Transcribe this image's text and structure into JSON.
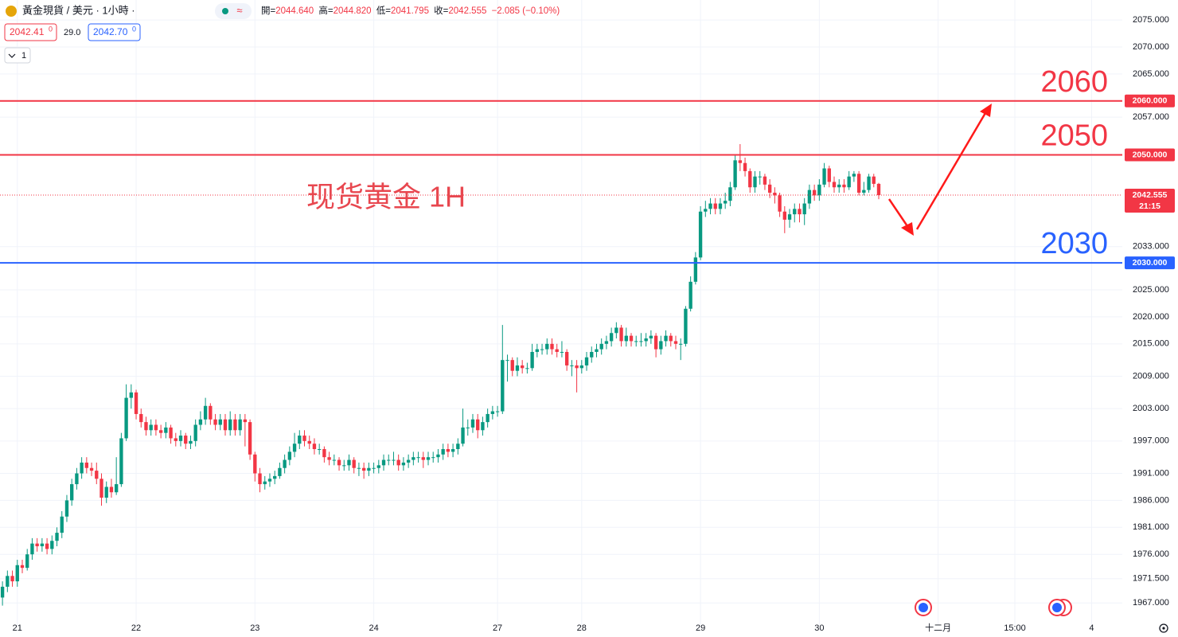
{
  "header": {
    "symbol": "黃金現貨 / 美元 · 1小時 ·",
    "badge": "≈",
    "ohlc": [
      {
        "key": "開=",
        "value": "2044.640"
      },
      {
        "key": "高=",
        "value": "2044.820"
      },
      {
        "key": "低=",
        "value": "2041.795"
      },
      {
        "key": "收=",
        "value": "2042.555"
      }
    ],
    "change": "−2.085 (−0.10%)",
    "bid": "2042.41",
    "bid_sup": "0",
    "spread": "29.0",
    "ask": "2042.70",
    "ask_sup": "0",
    "indicator_count": "1"
  },
  "chart_data": {
    "type": "candlestick",
    "annotation": "现货黄金 1H",
    "up_color": "#089981",
    "down_color": "#f23645",
    "grid": true,
    "xlim": [
      -0.5,
      226.2
    ],
    "ylim": [
      1962.9,
      2078.7
    ],
    "xticks": [
      {
        "value": 3,
        "label": "21"
      },
      {
        "value": 27,
        "label": "22"
      },
      {
        "value": 51,
        "label": "23"
      },
      {
        "value": 75,
        "label": "24"
      },
      {
        "value": 100,
        "label": "27"
      },
      {
        "value": 117,
        "label": "28"
      },
      {
        "value": 141,
        "label": "29"
      },
      {
        "value": 165,
        "label": "30"
      },
      {
        "value": 189,
        "label": "十二月"
      },
      {
        "value": 204.5,
        "label": "15:00"
      },
      {
        "value": 220,
        "label": "4"
      }
    ],
    "yticks": [
      {
        "value": 2075,
        "label": "2075.000"
      },
      {
        "value": 2070,
        "label": "2070.000"
      },
      {
        "value": 2065,
        "label": "2065.000"
      },
      {
        "value": 2057,
        "label": "2057.000"
      },
      {
        "value": 2033,
        "label": "2033.000"
      },
      {
        "value": 2025,
        "label": "2025.000"
      },
      {
        "value": 2020,
        "label": "2020.000"
      },
      {
        "value": 2015,
        "label": "2015.000"
      },
      {
        "value": 2009,
        "label": "2009.000"
      },
      {
        "value": 2003,
        "label": "2003.000"
      },
      {
        "value": 1997,
        "label": "1997.000"
      },
      {
        "value": 1991,
        "label": "1991.000"
      },
      {
        "value": 1986,
        "label": "1986.000"
      },
      {
        "value": 1981,
        "label": "1981.000"
      },
      {
        "value": 1976,
        "label": "1976.000"
      },
      {
        "value": 1971.5,
        "label": "1971.500"
      },
      {
        "value": 1967,
        "label": "1967.000"
      }
    ],
    "levels": [
      {
        "value": 2060,
        "label": "2060.000",
        "color": "#f23645"
      },
      {
        "value": 2050,
        "label": "2050.000",
        "color": "#f23645"
      },
      {
        "value": 2030,
        "label": "2030.000",
        "color": "#2962ff"
      }
    ],
    "last_price": {
      "value": 2042.555,
      "countdown": "21:15",
      "color": "#f23645"
    },
    "x": [
      0,
      1,
      2,
      3,
      4,
      5,
      6,
      7,
      8,
      9,
      10,
      11,
      12,
      13,
      14,
      15,
      16,
      17,
      18,
      19,
      20,
      21,
      22,
      23,
      24,
      25,
      26,
      27,
      28,
      29,
      30,
      31,
      32,
      33,
      34,
      35,
      36,
      37,
      38,
      39,
      40,
      41,
      42,
      43,
      44,
      45,
      46,
      47,
      48,
      49,
      50,
      51,
      52,
      53,
      54,
      55,
      56,
      57,
      58,
      59,
      60,
      61,
      62,
      63,
      64,
      65,
      66,
      67,
      68,
      69,
      70,
      71,
      72,
      73,
      74,
      75,
      76,
      77,
      78,
      79,
      80,
      81,
      82,
      83,
      84,
      85,
      86,
      87,
      88,
      89,
      90,
      91,
      92,
      93,
      94,
      95,
      96,
      97,
      98,
      99,
      100,
      101,
      102,
      103,
      104,
      105,
      106,
      107,
      108,
      109,
      110,
      111,
      112,
      113,
      114,
      115,
      116,
      117,
      118,
      119,
      120,
      121,
      122,
      123,
      124,
      125,
      126,
      127,
      128,
      129,
      130,
      131,
      132,
      133,
      134,
      135,
      136,
      137,
      138,
      139,
      140,
      141,
      142,
      143,
      144,
      145,
      146,
      147,
      148,
      149,
      150,
      151,
      152,
      153,
      154,
      155,
      156,
      157,
      158,
      159,
      160,
      161,
      162,
      163,
      164,
      165,
      166,
      167,
      168,
      169,
      170,
      171,
      172,
      173,
      174,
      175,
      176,
      177
    ],
    "open": [
      1968,
      1970,
      1972,
      1971,
      1974,
      1973.5,
      1976,
      1978,
      1977.5,
      1978,
      1977,
      1978.5,
      1980,
      1983,
      1986,
      1989,
      1991,
      1993,
      1992,
      1991.5,
      1990,
      1986.5,
      1988.5,
      1987.5,
      1989,
      1997.5,
      2005,
      2006,
      2002,
      2000.5,
      1999,
      2000,
      1999,
      1998.5,
      1999.5,
      1997.5,
      1997,
      1998,
      1996.5,
      1997,
      2000,
      2001,
      2003.5,
      2001,
      2000,
      2001,
      1999,
      2001,
      1999,
      2001,
      2000.5,
      1994.5,
      1991,
      1989,
      1989.5,
      1990,
      1990.5,
      1992,
      1993.5,
      1995,
      1996.5,
      1998,
      1997,
      1996.5,
      1995.5,
      1995.5,
      1994,
      1993.5,
      1993.5,
      1992.5,
      1992.5,
      1993.5,
      1992,
      1992,
      1991.5,
      1992,
      1992,
      1992.5,
      1993.5,
      1993.5,
      1993.5,
      1992.5,
      1993,
      1993.5,
      1994,
      1994,
      1993.5,
      1994,
      1994,
      1994.5,
      1995.5,
      1995,
      1995.5,
      1996.5,
      1999.5,
      1999.5,
      2001,
      1999,
      2000.5,
      2002,
      2002.5,
      2002.5,
      2012,
      2012,
      2010,
      2011,
      2010.5,
      2010.5,
      2013.5,
      2014,
      2014,
      2015,
      2014,
      2013.5,
      2013.5,
      2011,
      2011,
      2010.5,
      2011,
      2012.5,
      2013.5,
      2014,
      2015,
      2015.5,
      2017,
      2018,
      2015.5,
      2016.5,
      2015.5,
      2015.5,
      2015.5,
      2016,
      2016.5,
      2014,
      2015.5,
      2016.5,
      2015.5,
      2015,
      2015,
      2021.5,
      2026.5,
      2031,
      2039.5,
      2040,
      2041,
      2040,
      2041,
      2041.5,
      2044,
      2049,
      2048.5,
      2047,
      2044,
      2046,
      2046,
      2044.5,
      2043,
      2042.5,
      2039.5,
      2038,
      2039,
      2040,
      2039,
      2041,
      2043.5,
      2042.5,
      2044.5,
      2047.5,
      2045,
      2044,
      2044.5,
      2044,
      2046,
      2046.5,
      2043,
      2043.5,
      2046,
      2044.64
    ],
    "high": [
      1971,
      1973,
      1973,
      1975,
      1975,
      1977,
      1979,
      1979,
      1979,
      1979,
      1979.5,
      1981,
      1984,
      1987,
      1990,
      1992,
      1994,
      1994,
      1993,
      1993,
      1991,
      1989.5,
      1990,
      1994,
      1998.5,
      2007.5,
      2007.5,
      2006.5,
      2003,
      2001.5,
      2001,
      2001,
      2000,
      2000.5,
      2000,
      1998.5,
      1999,
      1998.5,
      1998,
      2001,
      2002.5,
      2005,
      2004,
      2002,
      2002,
      2002,
      2002.5,
      2002,
      2002,
      2002,
      2001,
      1995,
      1992,
      1990.5,
      1991,
      1991.5,
      1993,
      1994.5,
      1996,
      1998.5,
      1999,
      1999,
      1998,
      1997.5,
      1996.5,
      1996,
      1995,
      1994.5,
      1994,
      1993.5,
      1994.5,
      1994,
      1993,
      1993,
      1993,
      1993,
      1993.5,
      1994.5,
      1994.5,
      1995,
      1994.5,
      1994,
      1994.5,
      1995,
      1995,
      1995,
      1995,
      1995,
      1995.5,
      1996.5,
      1996.5,
      1996.5,
      1997.5,
      2003,
      2001,
      2002,
      2002,
      2001.5,
      2003,
      2003.5,
      2003.5,
      2018.5,
      2013,
      2012.5,
      2012.5,
      2012,
      2011.5,
      2015,
      2015,
      2015,
      2016,
      2016,
      2015,
      2015.5,
      2014,
      2012,
      2012,
      2012,
      2013.5,
      2014.5,
      2015,
      2016,
      2016.5,
      2018,
      2019,
      2018.5,
      2018,
      2017,
      2016.5,
      2017,
      2017,
      2017.5,
      2017,
      2016.5,
      2017.5,
      2017,
      2016.5,
      2016,
      2022,
      2027.5,
      2032,
      2040.5,
      2041.5,
      2042,
      2042,
      2042,
      2043,
      2045,
      2050,
      2052,
      2049.5,
      2047.5,
      2047,
      2047,
      2046.5,
      2045.5,
      2044,
      2043,
      2040.5,
      2040,
      2041,
      2041,
      2042,
      2044.5,
      2044.5,
      2045.5,
      2048.5,
      2048,
      2046,
      2045.5,
      2045.5,
      2047,
      2047,
      2047,
      2045,
      2046.5,
      2046.5,
      2044.82
    ],
    "low": [
      1966.5,
      1969,
      1970,
      1970,
      1972.5,
      1973,
      1975,
      1976.5,
      1976.5,
      1976,
      1976,
      1977.5,
      1979,
      1982,
      1985,
      1988,
      1990,
      1991,
      1990.5,
      1989,
      1985,
      1985.5,
      1986.5,
      1987,
      1988.5,
      1997,
      2003,
      2001,
      1999.5,
      1998,
      1998,
      1998,
      1997.5,
      1997.5,
      1996.5,
      1996,
      1996,
      1995.5,
      1995.5,
      1996,
      1999,
      2000,
      2000,
      1999,
      1999,
      1998,
      1998,
      1998,
      1998,
      1996,
      1993.5,
      1989.5,
      1987.5,
      1988,
      1988.5,
      1989,
      1990,
      1991,
      1992.5,
      1994,
      1995.5,
      1996,
      1995.5,
      1994.5,
      1994.5,
      1993,
      1992.5,
      1992.5,
      1991.5,
      1991.5,
      1991.5,
      1991,
      1990.5,
      1990,
      1990.5,
      1991,
      1991,
      1991.5,
      1992.5,
      1992.5,
      1991.5,
      1991.5,
      1992,
      1992.5,
      1993,
      1992,
      1992.5,
      1993,
      1993,
      1993.5,
      1994,
      1994,
      1994.5,
      1996,
      1998,
      1998.5,
      1997.5,
      1998,
      1999.5,
      2001,
      2001.5,
      2002,
      2008,
      2009,
      2009,
      2009.5,
      2009.5,
      2010,
      2012.5,
      2013,
      2013,
      2013,
      2012.5,
      2012.5,
      2010,
      2009,
      2006,
      2009.5,
      2010,
      2011.5,
      2012.5,
      2013,
      2014,
      2014.5,
      2016,
      2014.5,
      2014.5,
      2014.5,
      2014.5,
      2014.5,
      2014.5,
      2015,
      2012.5,
      2013,
      2014.5,
      2014.5,
      2014,
      2012,
      2014.5,
      2021,
      2026,
      2030.5,
      2038.5,
      2039,
      2039,
      2039,
      2040,
      2040.5,
      2043.5,
      2047,
      2046,
      2043,
      2043,
      2044.5,
      2043.5,
      2042,
      2041,
      2038.5,
      2035.5,
      2036.5,
      2037.5,
      2037.5,
      2037,
      2040,
      2041.5,
      2041.5,
      2044,
      2044,
      2043,
      2043,
      2043,
      2043.5,
      2045,
      2042.5,
      2042.5,
      2043,
      2044,
      2041.795
    ],
    "close": [
      1970,
      1972,
      1971,
      1974,
      1973.5,
      1976,
      1978,
      1977.5,
      1978,
      1977,
      1978.5,
      1980,
      1983,
      1986,
      1989,
      1991,
      1993,
      1992,
      1991.5,
      1990,
      1986.5,
      1988.5,
      1987.5,
      1989,
      1997.5,
      2005,
      2006,
      2002,
      2000.5,
      1999,
      2000,
      1999,
      1998.5,
      1999.5,
      1997.5,
      1997,
      1998,
      1996.5,
      1997,
      2000,
      2001,
      2003.5,
      2001,
      2000,
      2001,
      1999,
      2001,
      1999,
      2001,
      2000.5,
      1994.5,
      1991,
      1989,
      1989.5,
      1990,
      1990.5,
      1992,
      1993.5,
      1995,
      1996.5,
      1998,
      1997,
      1996.5,
      1995.5,
      1995.5,
      1994,
      1993.5,
      1993.5,
      1992.5,
      1992.5,
      1993.5,
      1992,
      1992,
      1991.5,
      1992,
      1992,
      1992.5,
      1993.5,
      1993.5,
      1993.5,
      1992.5,
      1993,
      1993.5,
      1994,
      1994,
      1993.5,
      1994,
      1994,
      1994.5,
      1995.5,
      1995,
      1995.5,
      1996.5,
      1999.5,
      1999.5,
      2001,
      1999,
      2000.5,
      2002,
      2002.5,
      2002.5,
      2012,
      2012,
      2010,
      2011,
      2010.5,
      2010.5,
      2013.5,
      2014,
      2014,
      2015,
      2014,
      2013.5,
      2013.5,
      2011,
      2011,
      2010.5,
      2011,
      2012.5,
      2013.5,
      2014,
      2015,
      2015.5,
      2017,
      2018,
      2015.5,
      2016.5,
      2015.5,
      2015.5,
      2015.5,
      2016,
      2016.5,
      2014,
      2015.5,
      2016.5,
      2015.5,
      2015,
      2015,
      2021.5,
      2026.5,
      2031,
      2039.5,
      2040,
      2041,
      2040,
      2041,
      2041.5,
      2044,
      2049,
      2048.5,
      2047,
      2044,
      2046,
      2046,
      2044.5,
      2043,
      2042.5,
      2039.5,
      2038,
      2039,
      2040,
      2039,
      2041,
      2043.5,
      2042.5,
      2044.5,
      2047.5,
      2045,
      2044,
      2044.5,
      2044,
      2046,
      2046.5,
      2043,
      2043.5,
      2046,
      2044.64,
      2042.555
    ]
  }
}
